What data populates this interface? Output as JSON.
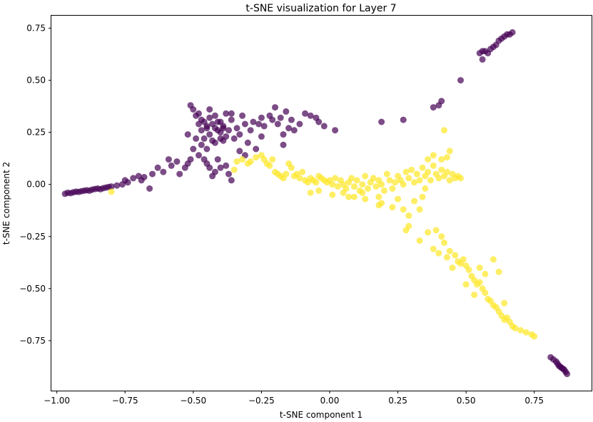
{
  "chart_data": {
    "type": "scatter",
    "title": "t-SNE visualization for Layer 7",
    "xlabel": "t-SNE component 1",
    "ylabel": "t-SNE component 2",
    "xlim": [
      -1.02,
      0.96
    ],
    "ylim": [
      -0.99,
      0.81
    ],
    "xticks": [
      -1.0,
      -0.75,
      -0.5,
      -0.25,
      0.0,
      0.25,
      0.5,
      0.75
    ],
    "xtick_labels": [
      "−1.00",
      "−0.75",
      "−0.50",
      "−0.25",
      "0.00",
      "0.25",
      "0.50",
      "0.75"
    ],
    "yticks": [
      -0.75,
      -0.5,
      -0.25,
      0.0,
      0.25,
      0.5,
      0.75
    ],
    "ytick_labels": [
      "−0.75",
      "−0.50",
      "−0.25",
      "0.00",
      "0.25",
      "0.50",
      "0.75"
    ],
    "grid": false,
    "legend": "none",
    "marker_alpha": 0.7,
    "series": [
      {
        "color": "#440154",
        "points": [
          [
            -0.97,
            -0.045
          ],
          [
            -0.96,
            -0.04
          ],
          [
            -0.95,
            -0.042
          ],
          [
            -0.94,
            -0.038
          ],
          [
            -0.93,
            -0.035
          ],
          [
            -0.92,
            -0.036
          ],
          [
            -0.91,
            -0.033
          ],
          [
            -0.9,
            -0.03
          ],
          [
            -0.89,
            -0.028
          ],
          [
            -0.88,
            -0.03
          ],
          [
            -0.87,
            -0.025
          ],
          [
            -0.86,
            -0.022
          ],
          [
            -0.85,
            -0.02
          ],
          [
            -0.84,
            -0.023
          ],
          [
            -0.83,
            -0.018
          ],
          [
            -0.82,
            -0.015
          ],
          [
            -0.81,
            -0.012
          ],
          [
            -0.8,
            -0.01
          ],
          [
            -0.78,
            -0.005
          ],
          [
            -0.76,
            0.0
          ],
          [
            -0.75,
            0.02
          ],
          [
            -0.74,
            0.01
          ],
          [
            -0.72,
            0.03
          ],
          [
            -0.7,
            0.04
          ],
          [
            -0.69,
            0.02
          ],
          [
            -0.68,
            0.035
          ],
          [
            -0.66,
            -0.02
          ],
          [
            -0.65,
            0.05
          ],
          [
            -0.63,
            0.08
          ],
          [
            -0.61,
            0.06
          ],
          [
            -0.59,
            0.12
          ],
          [
            -0.58,
            0.09
          ],
          [
            -0.56,
            0.11
          ],
          [
            -0.55,
            0.05
          ],
          [
            -0.53,
            0.08
          ],
          [
            -0.52,
            0.1
          ],
          [
            -0.51,
            0.12
          ],
          [
            -0.5,
            0.17
          ],
          [
            -0.49,
            0.22
          ],
          [
            -0.48,
            0.14
          ],
          [
            -0.47,
            0.19
          ],
          [
            -0.46,
            0.12
          ],
          [
            -0.45,
            0.1
          ],
          [
            -0.44,
            0.08
          ],
          [
            -0.43,
            0.04
          ],
          [
            -0.42,
            0.06
          ],
          [
            -0.4,
            0.08
          ],
          [
            -0.38,
            0.09
          ],
          [
            -0.37,
            0.05
          ],
          [
            -0.36,
            0.02
          ],
          [
            -0.52,
            0.24
          ],
          [
            -0.51,
            0.38
          ],
          [
            -0.5,
            0.36
          ],
          [
            -0.49,
            0.33
          ],
          [
            -0.48,
            0.34
          ],
          [
            -0.47,
            0.31
          ],
          [
            -0.46,
            0.3
          ],
          [
            -0.45,
            0.28
          ],
          [
            -0.44,
            0.32
          ],
          [
            -0.43,
            0.29
          ],
          [
            -0.42,
            0.27
          ],
          [
            -0.41,
            0.3
          ],
          [
            -0.4,
            0.25
          ],
          [
            -0.39,
            0.28
          ],
          [
            -0.38,
            0.23
          ],
          [
            -0.37,
            0.26
          ],
          [
            -0.36,
            0.31
          ],
          [
            -0.35,
            0.22
          ],
          [
            -0.34,
            0.27
          ],
          [
            -0.33,
            0.24
          ],
          [
            -0.32,
            0.33
          ],
          [
            -0.31,
            0.29
          ],
          [
            -0.3,
            0.2
          ],
          [
            -0.29,
            0.26
          ],
          [
            -0.28,
            0.3
          ],
          [
            -0.26,
            0.29
          ],
          [
            -0.25,
            0.32
          ],
          [
            -0.24,
            0.28
          ],
          [
            -0.22,
            0.33
          ],
          [
            -0.21,
            0.31
          ],
          [
            -0.2,
            0.37
          ],
          [
            -0.19,
            0.29
          ],
          [
            -0.18,
            0.32
          ],
          [
            -0.17,
            0.24
          ],
          [
            -0.16,
            0.35
          ],
          [
            -0.15,
            0.27
          ],
          [
            -0.14,
            0.31
          ],
          [
            -0.13,
            0.26
          ],
          [
            -0.11,
            0.29
          ],
          [
            -0.09,
            0.34
          ],
          [
            -0.07,
            0.33
          ],
          [
            -0.05,
            0.32
          ],
          [
            -0.04,
            0.3
          ],
          [
            -0.02,
            0.28
          ],
          [
            0.02,
            0.26
          ],
          [
            -0.17,
            0.19
          ],
          [
            -0.25,
            0.23
          ],
          [
            -0.27,
            0.17
          ],
          [
            -0.31,
            0.14
          ],
          [
            -0.33,
            0.16
          ],
          [
            -0.41,
            0.12
          ],
          [
            -0.45,
            0.17
          ],
          [
            -0.42,
            0.2
          ],
          [
            -0.4,
            0.22
          ],
          [
            -0.44,
            0.24
          ],
          [
            -0.43,
            0.21
          ],
          [
            -0.46,
            0.22
          ],
          [
            -0.39,
            0.21
          ],
          [
            -0.41,
            0.26
          ],
          [
            -0.42,
            0.33
          ],
          [
            -0.38,
            0.34
          ],
          [
            -0.36,
            0.34
          ],
          [
            -0.44,
            0.36
          ],
          [
            -0.45,
            0.27
          ],
          [
            -0.47,
            0.26
          ],
          [
            -0.48,
            0.29
          ],
          [
            -0.4,
            0.3
          ],
          [
            -0.39,
            0.27
          ],
          [
            0.19,
            0.3
          ],
          [
            0.27,
            0.31
          ],
          [
            0.4,
            0.38
          ],
          [
            0.41,
            0.4
          ],
          [
            0.38,
            0.37
          ],
          [
            0.48,
            0.5
          ],
          [
            0.56,
            0.6
          ],
          [
            0.57,
            0.64
          ],
          [
            0.58,
            0.63
          ],
          [
            0.59,
            0.65
          ],
          [
            0.6,
            0.66
          ],
          [
            0.61,
            0.67
          ],
          [
            0.62,
            0.69
          ],
          [
            0.63,
            0.7
          ],
          [
            0.64,
            0.71
          ],
          [
            0.65,
            0.72
          ],
          [
            0.66,
            0.72
          ],
          [
            0.67,
            0.73
          ],
          [
            0.55,
            0.63
          ],
          [
            0.56,
            0.64
          ],
          [
            0.81,
            -0.83
          ],
          [
            0.82,
            -0.84
          ],
          [
            0.83,
            -0.85
          ],
          [
            0.835,
            -0.86
          ],
          [
            0.84,
            -0.87
          ],
          [
            0.845,
            -0.875
          ],
          [
            0.85,
            -0.88
          ],
          [
            0.855,
            -0.885
          ],
          [
            0.86,
            -0.89
          ],
          [
            0.865,
            -0.9
          ],
          [
            0.87,
            -0.91
          ]
        ]
      },
      {
        "color": "#fde725",
        "points": [
          [
            -0.8,
            -0.035
          ],
          [
            -0.34,
            0.11
          ],
          [
            -0.35,
            0.07
          ],
          [
            -0.32,
            0.12
          ],
          [
            -0.3,
            0.1
          ],
          [
            -0.29,
            0.11
          ],
          [
            -0.27,
            0.13
          ],
          [
            -0.25,
            0.14
          ],
          [
            -0.24,
            0.12
          ],
          [
            -0.23,
            0.1
          ],
          [
            -0.22,
            0.09
          ],
          [
            -0.21,
            0.12
          ],
          [
            -0.2,
            0.06
          ],
          [
            -0.19,
            0.05
          ],
          [
            -0.18,
            0.04
          ],
          [
            -0.17,
            0.03
          ],
          [
            -0.16,
            0.05
          ],
          [
            -0.15,
            0.1
          ],
          [
            -0.14,
            0.08
          ],
          [
            -0.13,
            0.04
          ],
          [
            -0.12,
            0.05
          ],
          [
            -0.11,
            0.03
          ],
          [
            -0.1,
            0.06
          ],
          [
            -0.09,
            0.02
          ],
          [
            -0.08,
            0.01
          ],
          [
            -0.07,
            0.03
          ],
          [
            -0.06,
            0.02
          ],
          [
            -0.05,
            0.01
          ],
          [
            -0.04,
            0.04
          ],
          [
            -0.03,
            0.03
          ],
          [
            -0.02,
            0.02
          ],
          [
            -0.01,
            0.01
          ],
          [
            0.0,
            0.02
          ],
          [
            0.01,
            0.0
          ],
          [
            0.02,
            0.03
          ],
          [
            0.03,
            -0.01
          ],
          [
            0.04,
            0.02
          ],
          [
            0.05,
            0.0
          ],
          [
            0.06,
            -0.02
          ],
          [
            0.07,
            0.01
          ],
          [
            0.08,
            0.03
          ],
          [
            0.09,
            -0.01
          ],
          [
            0.1,
            0.02
          ],
          [
            0.11,
            -0.03
          ],
          [
            0.12,
            0.0
          ],
          [
            0.13,
            0.04
          ],
          [
            0.14,
            -0.02
          ],
          [
            0.15,
            0.01
          ],
          [
            0.16,
            0.03
          ],
          [
            0.17,
            -0.01
          ],
          [
            0.18,
            0.02
          ],
          [
            0.19,
            0.0
          ],
          [
            0.2,
            -0.03
          ],
          [
            0.21,
            0.05
          ],
          [
            0.22,
            0.02
          ],
          [
            0.23,
            -0.02
          ],
          [
            0.24,
            0.01
          ],
          [
            0.25,
            0.04
          ],
          [
            0.26,
            0.02
          ],
          [
            0.27,
            0.0
          ],
          [
            0.28,
            0.06
          ],
          [
            0.29,
            0.03
          ],
          [
            0.3,
            0.07
          ],
          [
            0.31,
            0.01
          ],
          [
            0.32,
            0.05
          ],
          [
            0.33,
            0.02
          ],
          [
            0.34,
            0.08
          ],
          [
            0.35,
            0.04
          ],
          [
            0.36,
            0.06
          ],
          [
            0.37,
            0.02
          ],
          [
            0.38,
            0.09
          ],
          [
            0.39,
            0.05
          ],
          [
            0.4,
            0.03
          ],
          [
            0.41,
            0.07
          ],
          [
            0.42,
            0.04
          ],
          [
            0.43,
            0.06
          ],
          [
            0.44,
            0.02
          ],
          [
            0.45,
            0.05
          ],
          [
            0.46,
            0.03
          ],
          [
            0.47,
            0.04
          ],
          [
            0.48,
            0.03
          ],
          [
            0.43,
            0.13
          ],
          [
            0.41,
            0.12
          ],
          [
            0.44,
            0.16
          ],
          [
            0.42,
            0.26
          ],
          [
            0.38,
            0.14
          ],
          [
            0.36,
            0.12
          ],
          [
            -0.07,
            -0.04
          ],
          [
            -0.04,
            -0.03
          ],
          [
            0.01,
            -0.05
          ],
          [
            0.05,
            -0.04
          ],
          [
            0.09,
            -0.06
          ],
          [
            0.13,
            -0.07
          ],
          [
            0.18,
            -0.1
          ],
          [
            0.19,
            -0.09
          ],
          [
            0.23,
            -0.11
          ],
          [
            0.25,
            -0.07
          ],
          [
            0.27,
            -0.12
          ],
          [
            0.29,
            -0.15
          ],
          [
            0.31,
            -0.08
          ],
          [
            0.33,
            -0.12
          ],
          [
            0.34,
            -0.06
          ],
          [
            0.35,
            -0.02
          ],
          [
            0.18,
            -0.06
          ],
          [
            0.12,
            -0.04
          ],
          [
            0.07,
            -0.06
          ],
          [
            0.28,
            -0.22
          ],
          [
            0.29,
            -0.2
          ],
          [
            0.33,
            -0.27
          ],
          [
            0.36,
            -0.23
          ],
          [
            0.38,
            -0.31
          ],
          [
            0.39,
            -0.22
          ],
          [
            0.41,
            -0.25
          ],
          [
            0.42,
            -0.28
          ],
          [
            0.4,
            -0.33
          ],
          [
            0.43,
            -0.35
          ],
          [
            0.44,
            -0.32
          ],
          [
            0.45,
            -0.4
          ],
          [
            0.46,
            -0.34
          ],
          [
            0.47,
            -0.37
          ],
          [
            0.48,
            -0.38
          ],
          [
            0.49,
            -0.36
          ],
          [
            0.5,
            -0.39
          ],
          [
            0.51,
            -0.41
          ],
          [
            0.52,
            -0.44
          ],
          [
            0.53,
            -0.46
          ],
          [
            0.54,
            -0.48
          ],
          [
            0.55,
            -0.47
          ],
          [
            0.56,
            -0.5
          ],
          [
            0.57,
            -0.52
          ],
          [
            0.58,
            -0.55
          ],
          [
            0.59,
            -0.56
          ],
          [
            0.6,
            -0.58
          ],
          [
            0.61,
            -0.59
          ],
          [
            0.62,
            -0.61
          ],
          [
            0.63,
            -0.63
          ],
          [
            0.64,
            -0.65
          ],
          [
            0.65,
            -0.64
          ],
          [
            0.66,
            -0.66
          ],
          [
            0.67,
            -0.68
          ],
          [
            0.68,
            -0.69
          ],
          [
            0.7,
            -0.7
          ],
          [
            0.72,
            -0.71
          ],
          [
            0.74,
            -0.72
          ],
          [
            0.75,
            -0.73
          ],
          [
            0.55,
            -0.4
          ],
          [
            0.57,
            -0.43
          ],
          [
            0.53,
            -0.53
          ],
          [
            0.5,
            -0.48
          ],
          [
            0.6,
            -0.36
          ],
          [
            0.62,
            -0.42
          ],
          [
            0.64,
            -0.57
          ]
        ]
      }
    ]
  }
}
